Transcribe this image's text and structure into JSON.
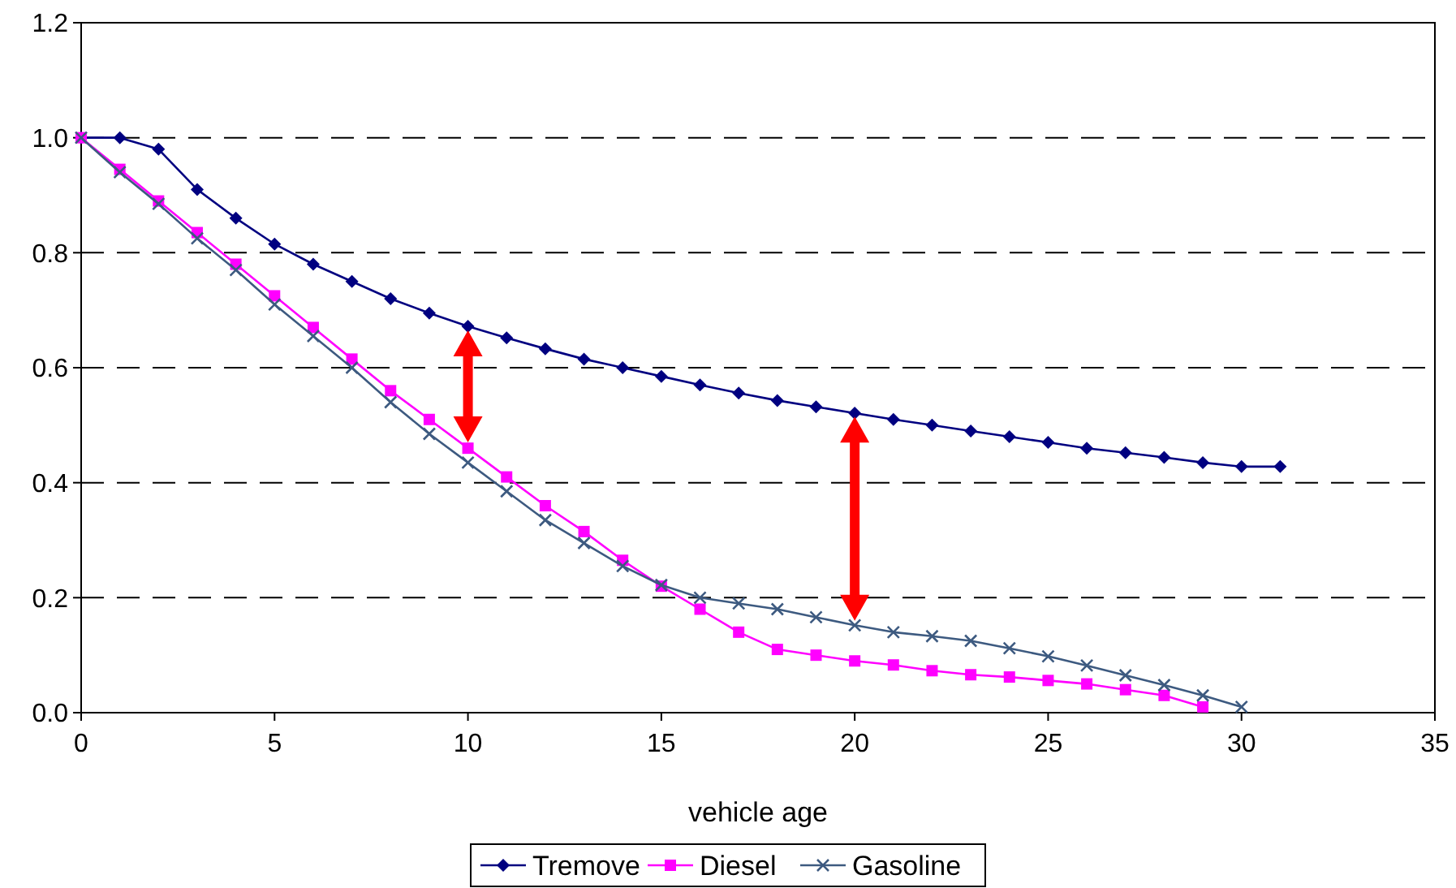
{
  "chart_data": {
    "type": "line",
    "xlabel": "vehicle age",
    "xlim": [
      0,
      35
    ],
    "xticks": [
      0,
      5,
      10,
      15,
      20,
      25,
      30,
      35
    ],
    "ylim": [
      0,
      1.2
    ],
    "yticks": [
      {
        "value": 0,
        "label": "0.0"
      },
      {
        "value": 0.2,
        "label": "0.2"
      },
      {
        "value": 0.4,
        "label": "0.4"
      },
      {
        "value": 0.6,
        "label": "0.6"
      },
      {
        "value": 0.8,
        "label": "0.8"
      },
      {
        "value": 1,
        "label": "1.0"
      },
      {
        "value": 1.2,
        "label": "1.2"
      }
    ],
    "grid": "y",
    "legend": "bottom",
    "series": [
      {
        "name": "Tremove",
        "color": "#000080",
        "marker": "diamond",
        "x": [
          0,
          1,
          2,
          3,
          4,
          5,
          6,
          7,
          8,
          9,
          10,
          11,
          12,
          13,
          14,
          15,
          16,
          17,
          18,
          19,
          20,
          21,
          22,
          23,
          24,
          25,
          26,
          27,
          28,
          29,
          30,
          31
        ],
        "values": [
          1.0,
          1.0,
          0.98,
          0.91,
          0.86,
          0.815,
          0.78,
          0.75,
          0.72,
          0.695,
          0.672,
          0.652,
          0.633,
          0.615,
          0.6,
          0.585,
          0.57,
          0.556,
          0.543,
          0.532,
          0.521,
          0.51,
          0.5,
          0.49,
          0.48,
          0.47,
          0.46,
          0.452,
          0.444,
          0.435,
          0.428,
          0.428
        ]
      },
      {
        "name": "Diesel",
        "color": "#ff00ff",
        "marker": "square",
        "x": [
          0,
          1,
          2,
          3,
          4,
          5,
          6,
          7,
          8,
          9,
          10,
          11,
          12,
          13,
          14,
          15,
          16,
          17,
          18,
          19,
          20,
          21,
          22,
          23,
          24,
          25,
          26,
          27,
          28,
          29
        ],
        "values": [
          1.0,
          0.945,
          0.89,
          0.835,
          0.78,
          0.725,
          0.67,
          0.615,
          0.56,
          0.51,
          0.46,
          0.41,
          0.36,
          0.315,
          0.265,
          0.22,
          0.18,
          0.14,
          0.11,
          0.1,
          0.09,
          0.083,
          0.073,
          0.066,
          0.062,
          0.056,
          0.05,
          0.04,
          0.03,
          0.01
        ]
      },
      {
        "name": "Gasoline",
        "color": "#3d5a80",
        "marker": "cross",
        "x": [
          0,
          1,
          2,
          3,
          4,
          5,
          6,
          7,
          8,
          9,
          10,
          11,
          12,
          13,
          14,
          15,
          16,
          17,
          18,
          19,
          20,
          21,
          22,
          23,
          24,
          25,
          26,
          27,
          28,
          29,
          30
        ],
        "values": [
          1.0,
          0.94,
          0.885,
          0.825,
          0.77,
          0.71,
          0.655,
          0.6,
          0.54,
          0.485,
          0.435,
          0.385,
          0.335,
          0.295,
          0.255,
          0.222,
          0.2,
          0.19,
          0.18,
          0.166,
          0.152,
          0.14,
          0.133,
          0.125,
          0.112,
          0.098,
          0.082,
          0.065,
          0.048,
          0.03,
          0.01
        ]
      }
    ]
  }
}
